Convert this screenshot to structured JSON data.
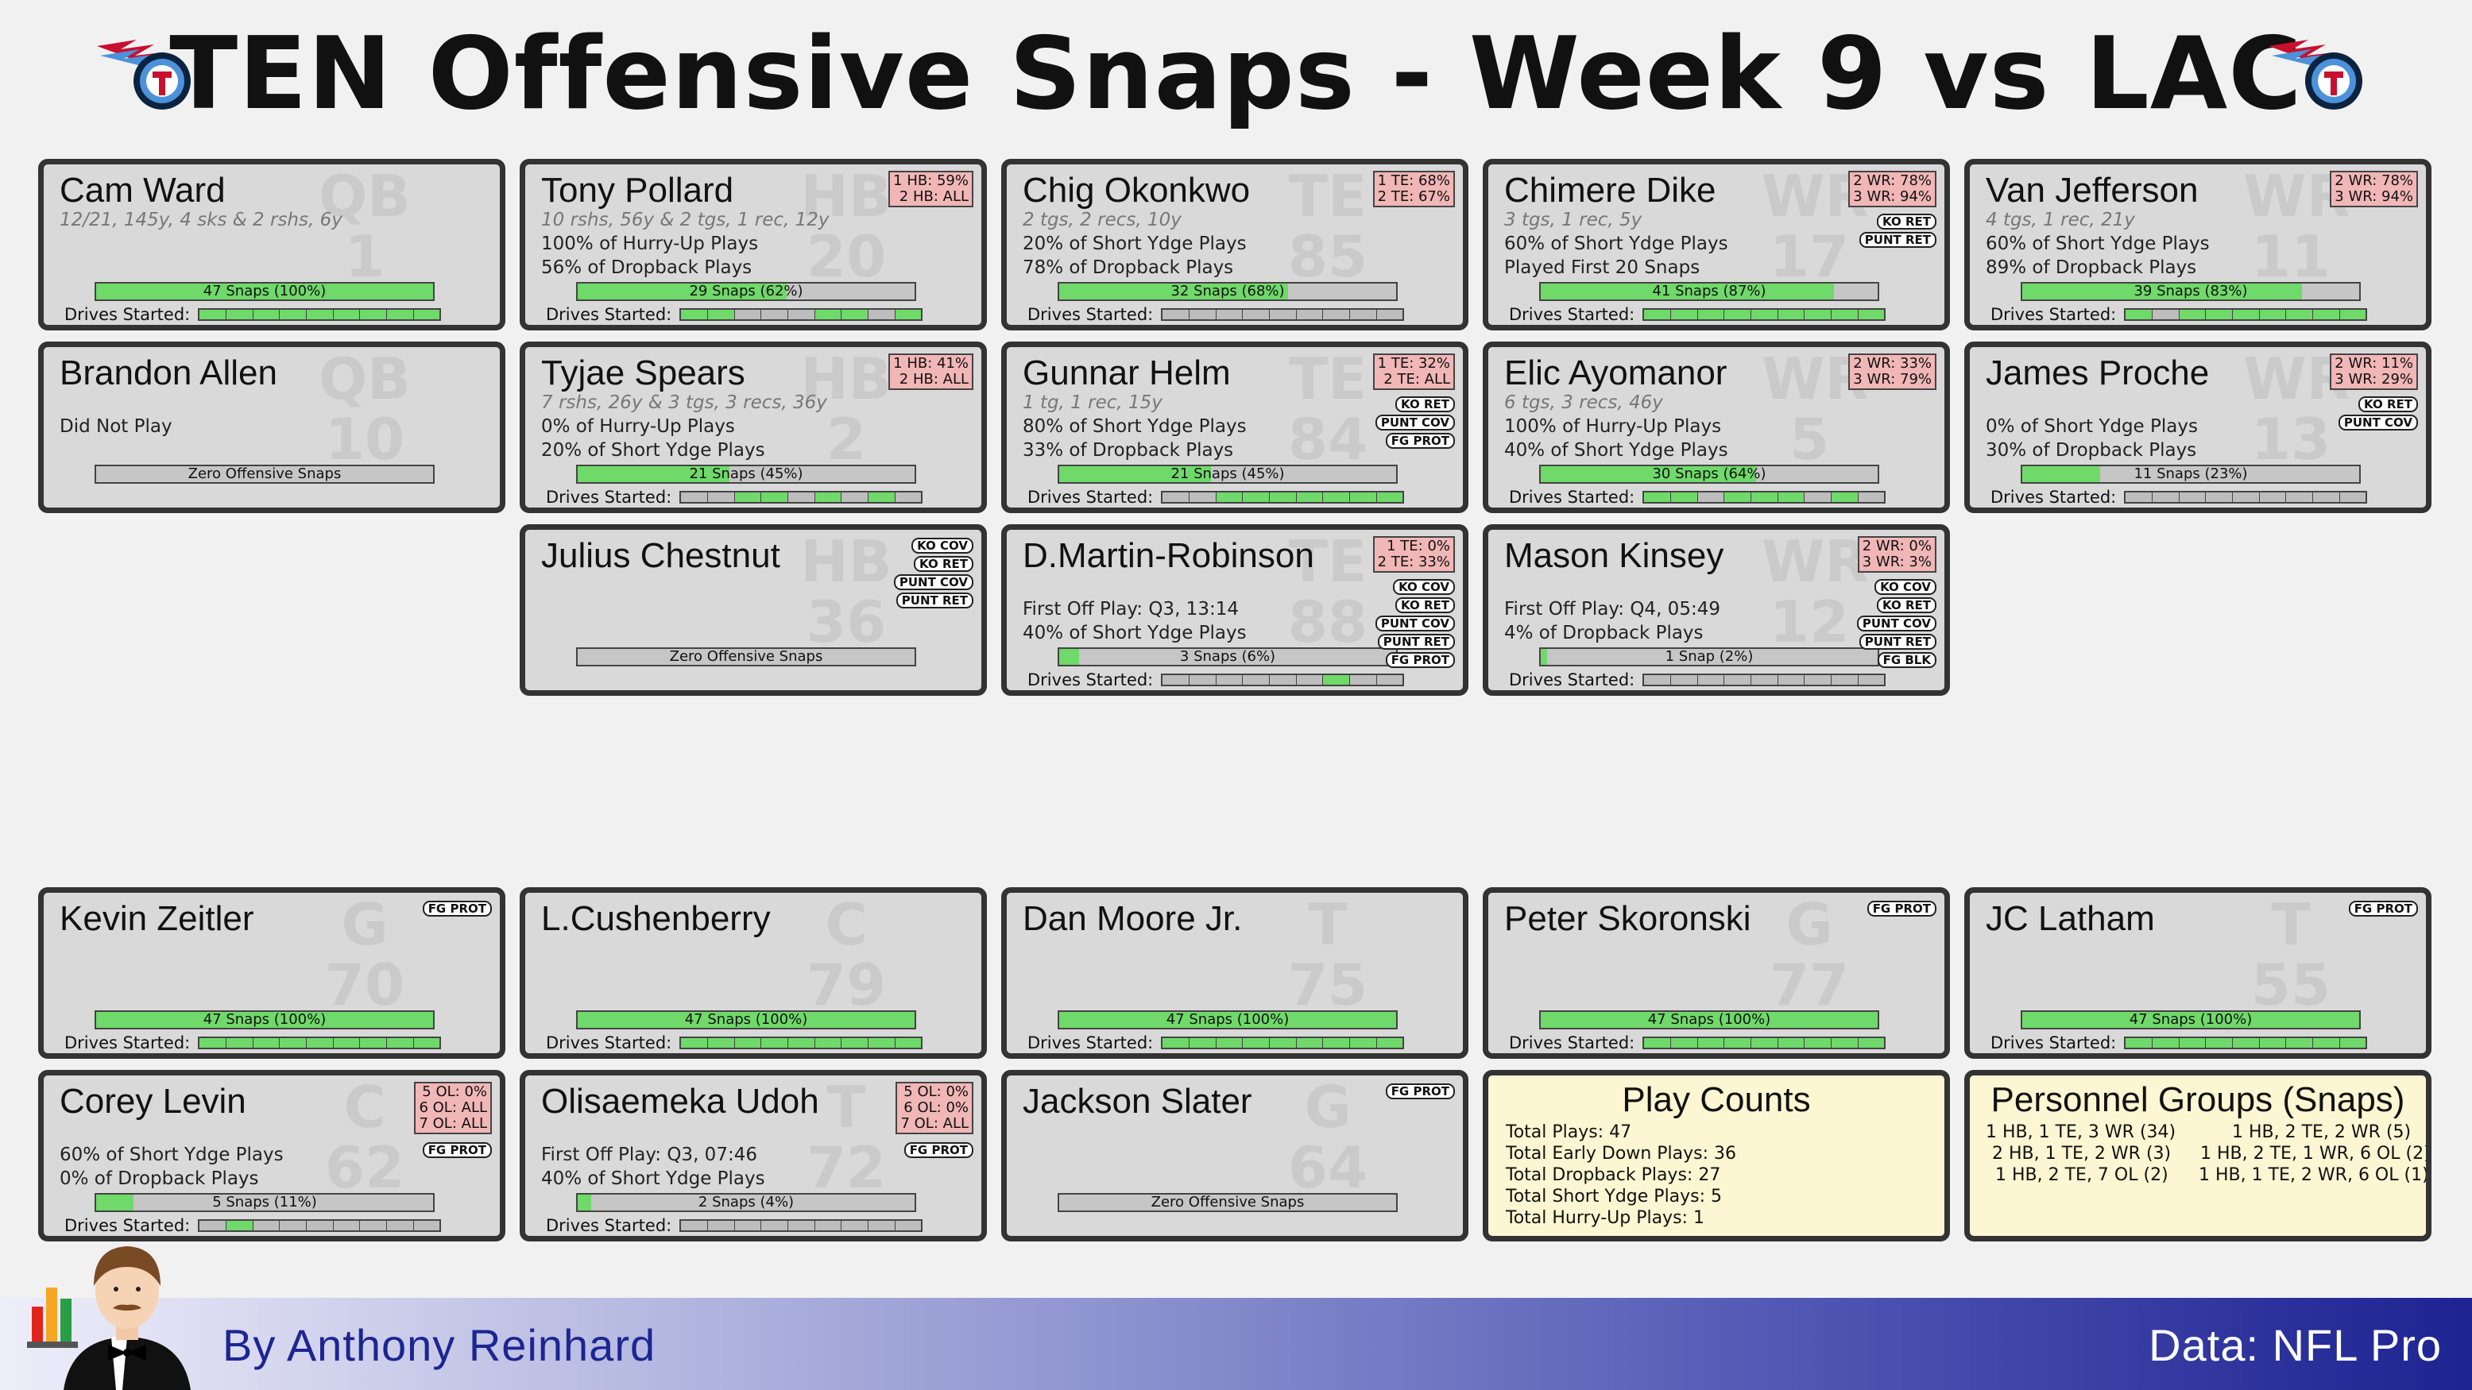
{
  "title": "TEN Offensive Snaps - Week 9 vs LAC",
  "drives_label": "Drives Started:",
  "colors": {
    "snap_fill": "#6fd96a",
    "card_bg": "#d9d9d9",
    "position_pct_bg": "#f1b6b6",
    "summary_bg": "#fdf6d2",
    "footer_text": "#1c2592"
  },
  "players": [
    {
      "name": "Cam Ward",
      "pos": "QB",
      "num": "1",
      "stat": "12/21, 145y, 4 sks & 2 rshs, 6y",
      "line1": "",
      "line2": "",
      "snaps": 47,
      "snap_pct": 1.0,
      "bar": "47 Snaps (100%)",
      "drives": [
        1,
        1,
        1,
        1,
        1,
        1,
        1,
        1,
        1
      ],
      "pos_pct": [],
      "tags": []
    },
    {
      "name": "Tony Pollard",
      "pos": "HB",
      "num": "20",
      "stat": "10 rshs, 56y & 2 tgs, 1 rec, 12y",
      "line1": "100% of Hurry-Up Plays",
      "line2": "56% of Dropback Plays",
      "snaps": 29,
      "snap_pct": 0.62,
      "bar": "29 Snaps (62%)",
      "drives": [
        1,
        1,
        0,
        0,
        0,
        1,
        1,
        0,
        1
      ],
      "pos_pct": [
        "1 HB: 59%",
        "2 HB: ALL"
      ],
      "tags": []
    },
    {
      "name": "Chig Okonkwo",
      "pos": "TE",
      "num": "85",
      "stat": "2 tgs, 2 recs, 10y",
      "line1": "20% of Short Ydge Plays",
      "line2": "78% of Dropback Plays",
      "snaps": 32,
      "snap_pct": 0.68,
      "bar": "32 Snaps (68%)",
      "drives": [
        0,
        0,
        0,
        0,
        0,
        0,
        0,
        0,
        0
      ],
      "pos_pct": [
        "1 TE: 68%",
        "2 TE: 67%"
      ],
      "tags": []
    },
    {
      "name": "Chimere Dike",
      "pos": "WR",
      "num": "17",
      "stat": "3 tgs, 1 rec, 5y",
      "line1": "60% of Short Ydge Plays",
      "line2": "Played First 20 Snaps",
      "snaps": 41,
      "snap_pct": 0.87,
      "bar": "41 Snaps (87%)",
      "drives": [
        1,
        1,
        1,
        1,
        1,
        1,
        1,
        1,
        1
      ],
      "pos_pct": [
        "2 WR: 78%",
        "3 WR: 94%"
      ],
      "tags": [
        "KO RET",
        "PUNT RET"
      ]
    },
    {
      "name": "Van Jefferson",
      "pos": "WR",
      "num": "11",
      "stat": "4 tgs, 1 rec, 21y",
      "line1": "60% of Short Ydge Plays",
      "line2": "89% of Dropback Plays",
      "snaps": 39,
      "snap_pct": 0.83,
      "bar": "39 Snaps (83%)",
      "drives": [
        1,
        0,
        1,
        1,
        1,
        1,
        1,
        1,
        1
      ],
      "pos_pct": [
        "2 WR: 78%",
        "3 WR: 94%"
      ],
      "tags": []
    },
    {
      "name": "Brandon Allen",
      "pos": "QB",
      "num": "10",
      "stat": "",
      "line1": "Did Not Play",
      "line2": "",
      "snaps": 0,
      "snap_pct": 0,
      "bar": "Zero Offensive Snaps",
      "drives": null,
      "pos_pct": [],
      "tags": []
    },
    {
      "name": "Tyjae Spears",
      "pos": "HB",
      "num": "2",
      "stat": "7 rshs, 26y & 3 tgs, 3 recs, 36y",
      "line1": "0% of Hurry-Up Plays",
      "line2": "20% of Short Ydge Plays",
      "snaps": 21,
      "snap_pct": 0.45,
      "bar": "21 Snaps (45%)",
      "drives": [
        0,
        0,
        1,
        1,
        0,
        1,
        0,
        1,
        0
      ],
      "pos_pct": [
        "1 HB: 41%",
        "2 HB: ALL"
      ],
      "tags": []
    },
    {
      "name": "Gunnar Helm",
      "pos": "TE",
      "num": "84",
      "stat": "1 tg, 1 rec, 15y",
      "line1": "80% of Short Ydge Plays",
      "line2": "33% of Dropback Plays",
      "snaps": 21,
      "snap_pct": 0.45,
      "bar": "21 Snaps (45%)",
      "drives": [
        0,
        0,
        1,
        1,
        1,
        1,
        1,
        1,
        1
      ],
      "pos_pct": [
        "1 TE: 32%",
        "2 TE: ALL"
      ],
      "tags": [
        "KO RET",
        "PUNT COV",
        "FG PROT"
      ]
    },
    {
      "name": "Elic Ayomanor",
      "pos": "WR",
      "num": "5",
      "stat": "6 tgs, 3 recs, 46y",
      "line1": "100% of Hurry-Up Plays",
      "line2": "40% of Short Ydge Plays",
      "snaps": 30,
      "snap_pct": 0.64,
      "bar": "30 Snaps (64%)",
      "drives": [
        1,
        1,
        0,
        1,
        1,
        1,
        0,
        1,
        0
      ],
      "pos_pct": [
        "2 WR: 33%",
        "3 WR: 79%"
      ],
      "tags": []
    },
    {
      "name": "James Proche",
      "pos": "WR",
      "num": "13",
      "stat": "",
      "line1": "0% of Short Ydge Plays",
      "line2": "30% of Dropback Plays",
      "snaps": 11,
      "snap_pct": 0.23,
      "bar": "11 Snaps (23%)",
      "drives": [
        0,
        0,
        0,
        0,
        0,
        0,
        0,
        0,
        0
      ],
      "pos_pct": [
        "2 WR: 11%",
        "3 WR: 29%"
      ],
      "tags": [
        "KO RET",
        "PUNT COV"
      ]
    },
    {
      "name": "Julius Chestnut",
      "pos": "HB",
      "num": "36",
      "stat": "",
      "line1": "",
      "line2": "",
      "snaps": 0,
      "snap_pct": 0,
      "bar": "Zero Offensive Snaps",
      "drives": null,
      "pos_pct": [],
      "tags": [
        "KO COV",
        "KO RET",
        "PUNT COV",
        "PUNT RET"
      ]
    },
    {
      "name": "D.Martin-Robinson",
      "pos": "TE",
      "num": "88",
      "stat": "",
      "line1": "First Off Play: Q3, 13:14",
      "line2": "40% of Short Ydge Plays",
      "snaps": 3,
      "snap_pct": 0.06,
      "bar": "3 Snaps (6%)",
      "drives": [
        0,
        0,
        0,
        0,
        0,
        0,
        1,
        0,
        0
      ],
      "pos_pct": [
        "1 TE: 0%",
        "2 TE: 33%"
      ],
      "tags": [
        "KO COV",
        "KO RET",
        "PUNT COV",
        "PUNT RET",
        "FG PROT"
      ]
    },
    {
      "name": "Mason Kinsey",
      "pos": "WR",
      "num": "12",
      "stat": "",
      "line1": "First Off Play: Q4, 05:49",
      "line2": "4% of Dropback Plays",
      "snaps": 1,
      "snap_pct": 0.02,
      "bar": "1 Snap (2%)",
      "drives": [
        0,
        0,
        0,
        0,
        0,
        0,
        0,
        0,
        0
      ],
      "pos_pct": [
        "2 WR: 0%",
        "3 WR: 3%"
      ],
      "tags": [
        "KO COV",
        "KO RET",
        "PUNT COV",
        "PUNT RET",
        "FG BLK"
      ]
    },
    {
      "name": "Kevin Zeitler",
      "pos": "G",
      "num": "70",
      "stat": "",
      "line1": "",
      "line2": "",
      "snaps": 47,
      "snap_pct": 1.0,
      "bar": "47 Snaps (100%)",
      "drives": [
        1,
        1,
        1,
        1,
        1,
        1,
        1,
        1,
        1
      ],
      "pos_pct": [],
      "tags": [
        "FG PROT"
      ]
    },
    {
      "name": "L.Cushenberry",
      "pos": "C",
      "num": "79",
      "stat": "",
      "line1": "",
      "line2": "",
      "snaps": 47,
      "snap_pct": 1.0,
      "bar": "47 Snaps (100%)",
      "drives": [
        1,
        1,
        1,
        1,
        1,
        1,
        1,
        1,
        1
      ],
      "pos_pct": [],
      "tags": []
    },
    {
      "name": "Dan Moore Jr.",
      "pos": "T",
      "num": "75",
      "stat": "",
      "line1": "",
      "line2": "",
      "snaps": 47,
      "snap_pct": 1.0,
      "bar": "47 Snaps (100%)",
      "drives": [
        1,
        1,
        1,
        1,
        1,
        1,
        1,
        1,
        1
      ],
      "pos_pct": [],
      "tags": []
    },
    {
      "name": "Peter Skoronski",
      "pos": "G",
      "num": "77",
      "stat": "",
      "line1": "",
      "line2": "",
      "snaps": 47,
      "snap_pct": 1.0,
      "bar": "47 Snaps (100%)",
      "drives": [
        1,
        1,
        1,
        1,
        1,
        1,
        1,
        1,
        1
      ],
      "pos_pct": [],
      "tags": [
        "FG PROT"
      ]
    },
    {
      "name": "JC Latham",
      "pos": "T",
      "num": "55",
      "stat": "",
      "line1": "",
      "line2": "",
      "snaps": 47,
      "snap_pct": 1.0,
      "bar": "47 Snaps (100%)",
      "drives": [
        1,
        1,
        1,
        1,
        1,
        1,
        1,
        1,
        1
      ],
      "pos_pct": [],
      "tags": [
        "FG PROT"
      ]
    },
    {
      "name": "Corey Levin",
      "pos": "C",
      "num": "62",
      "stat": "",
      "line1": "60% of Short Ydge Plays",
      "line2": "0% of Dropback Plays",
      "snaps": 5,
      "snap_pct": 0.11,
      "bar": "5 Snaps (11%)",
      "drives": [
        0,
        1,
        0,
        0,
        0,
        0,
        0,
        0,
        0
      ],
      "pos_pct": [
        "5 OL: 0%",
        "6 OL: ALL",
        "7 OL: ALL"
      ],
      "tags": [
        "FG PROT"
      ]
    },
    {
      "name": "Olisaemeka Udoh",
      "pos": "T",
      "num": "72",
      "stat": "",
      "line1": "First Off Play: Q3, 07:46",
      "line2": "40% of Short Ydge Plays",
      "snaps": 2,
      "snap_pct": 0.04,
      "bar": "2 Snaps (4%)",
      "drives": [
        0,
        0,
        0,
        0,
        0,
        0,
        0,
        0,
        0
      ],
      "pos_pct": [
        "5 OL: 0%",
        "6 OL: 0%",
        "7 OL: ALL"
      ],
      "tags": [
        "FG PROT"
      ]
    },
    {
      "name": "Jackson Slater",
      "pos": "G",
      "num": "64",
      "stat": "",
      "line1": "",
      "line2": "",
      "snaps": 0,
      "snap_pct": 0,
      "bar": "Zero Offensive Snaps",
      "drives": null,
      "pos_pct": [],
      "tags": [
        "FG PROT"
      ]
    }
  ],
  "play_counts": {
    "title": "Play Counts",
    "lines": [
      "Total Plays: 47",
      "Total Early Down Plays: 36",
      "Total Dropback Plays: 27",
      "Total Short Ydge Plays: 5",
      "Total Hurry-Up Plays: 1"
    ]
  },
  "personnel": {
    "title": "Personnel Groups (Snaps)",
    "left": [
      "1 HB, 1 TE, 3 WR (34)",
      "2 HB, 1 TE, 2 WR (3)",
      "1 HB, 2 TE, 7 OL (2)"
    ],
    "right": [
      "1 HB, 2 TE, 2 WR (5)",
      "1 HB, 2 TE, 1 WR, 6 OL (2)",
      "1 HB, 1 TE, 2 WR, 6 OL (1)"
    ]
  },
  "footer": {
    "byline": "By Anthony Reinhard",
    "source": "Data: NFL Pro"
  },
  "icons": {
    "team_logo": "titans-logo-icon",
    "author_avatar": "author-avatar-icon"
  }
}
